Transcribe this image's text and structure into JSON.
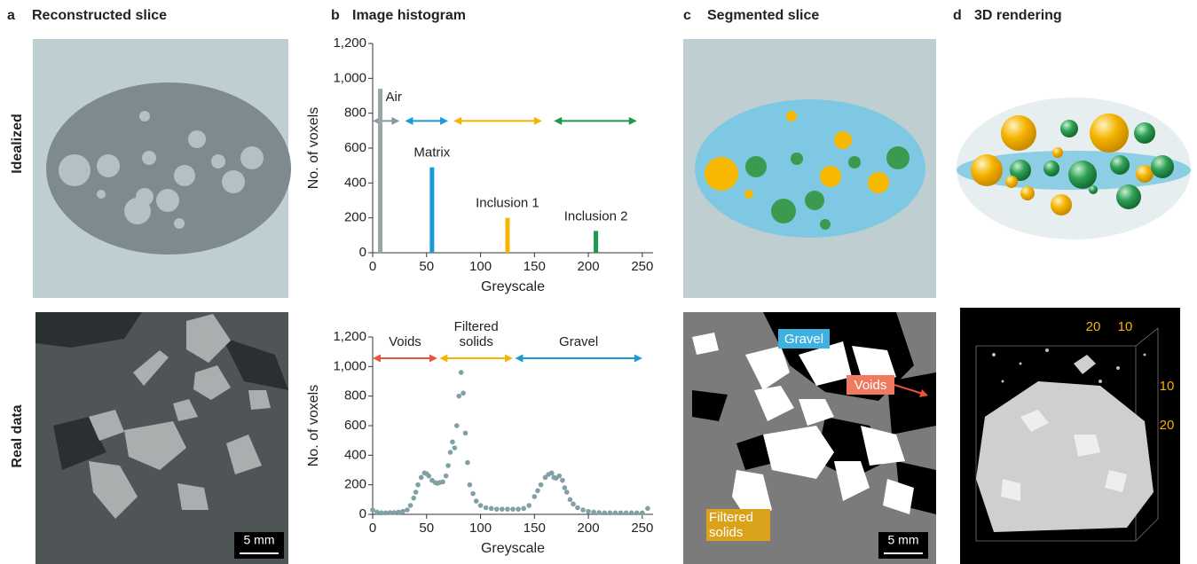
{
  "panels": [
    {
      "letter": "a",
      "title": "Reconstructed slice"
    },
    {
      "letter": "b",
      "title": "Image histogram"
    },
    {
      "letter": "c",
      "title": "Segmented slice"
    },
    {
      "letter": "d",
      "title": "3D rendering"
    }
  ],
  "rows": [
    "Idealized",
    "Real data"
  ],
  "chart_data": [
    {
      "type": "bar",
      "xlabel": "Greyscale",
      "ylabel": "No. of voxels",
      "x": [
        7,
        55,
        125,
        207
      ],
      "values": [
        940,
        490,
        200,
        125
      ],
      "labels": [
        "Air",
        "Matrix",
        "Inclusion 1",
        "Inclusion 2"
      ],
      "colors": [
        "#9aa5a8",
        "#1a9ad6",
        "#f5b400",
        "#1a9a4a"
      ],
      "ranges": [
        {
          "color": "#8a9a9e",
          "from": 0,
          "to": 25
        },
        {
          "color": "#1a9ad6",
          "from": 30,
          "to": 70
        },
        {
          "color": "#f5b400",
          "from": 75,
          "to": 157
        },
        {
          "color": "#1a9a4a",
          "from": 168,
          "to": 245
        }
      ],
      "xlim": [
        0,
        260
      ],
      "xticks": [
        0,
        50,
        100,
        150,
        200,
        250
      ],
      "ylim": [
        0,
        1200
      ],
      "yticks": [
        0,
        200,
        400,
        600,
        800,
        {
          "value": 1000,
          "label": "1,000"
        },
        {
          "value": 1200,
          "label": "1,200"
        }
      ]
    },
    {
      "type": "scatter",
      "xlabel": "Greyscale",
      "ylabel": "No. of voxels",
      "color": "#7fa0a4",
      "x": [
        0,
        4,
        8,
        12,
        16,
        20,
        24,
        28,
        32,
        35,
        38,
        40,
        42,
        45,
        48,
        50,
        52,
        55,
        58,
        60,
        62,
        65,
        68,
        70,
        72,
        74,
        76,
        78,
        80,
        82,
        84,
        86,
        88,
        90,
        93,
        96,
        100,
        105,
        110,
        115,
        120,
        125,
        130,
        135,
        140,
        145,
        150,
        153,
        156,
        160,
        163,
        166,
        168,
        170,
        173,
        176,
        178,
        180,
        183,
        186,
        190,
        195,
        200,
        205,
        210,
        215,
        220,
        225,
        230,
        235,
        240,
        245,
        250,
        255
      ],
      "values": [
        30,
        15,
        10,
        10,
        12,
        12,
        15,
        20,
        30,
        60,
        110,
        150,
        200,
        250,
        280,
        275,
        260,
        230,
        215,
        210,
        215,
        220,
        260,
        330,
        420,
        490,
        450,
        600,
        800,
        960,
        820,
        550,
        350,
        200,
        140,
        90,
        60,
        45,
        40,
        35,
        35,
        35,
        35,
        35,
        40,
        60,
        120,
        160,
        200,
        250,
        270,
        280,
        250,
        245,
        260,
        230,
        180,
        150,
        100,
        70,
        45,
        30,
        20,
        15,
        12,
        10,
        10,
        10,
        10,
        10,
        10,
        10,
        10,
        40
      ],
      "ranges": [
        {
          "label": "Voids",
          "color": "#e8553a",
          "from": 0,
          "to": 60
        },
        {
          "label": "Filtered solids",
          "color": "#f5b400",
          "from": 62,
          "to": 130
        },
        {
          "label": "Gravel",
          "color": "#1a9ad6",
          "from": 132,
          "to": 250
        }
      ],
      "xlim": [
        0,
        260
      ],
      "xticks": [
        0,
        50,
        100,
        150,
        200,
        250
      ],
      "ylim": [
        0,
        1200
      ],
      "yticks": [
        0,
        200,
        400,
        600,
        800,
        {
          "value": 1000,
          "label": "1,000"
        },
        {
          "value": 1200,
          "label": "1,200"
        }
      ]
    }
  ],
  "segmented_labels": [
    "Gravel",
    "Voids",
    "Filtered solids"
  ],
  "scale_bars": [
    "5 mm",
    "5 mm"
  ],
  "rendering_ticks": [
    20,
    10,
    10,
    20
  ]
}
